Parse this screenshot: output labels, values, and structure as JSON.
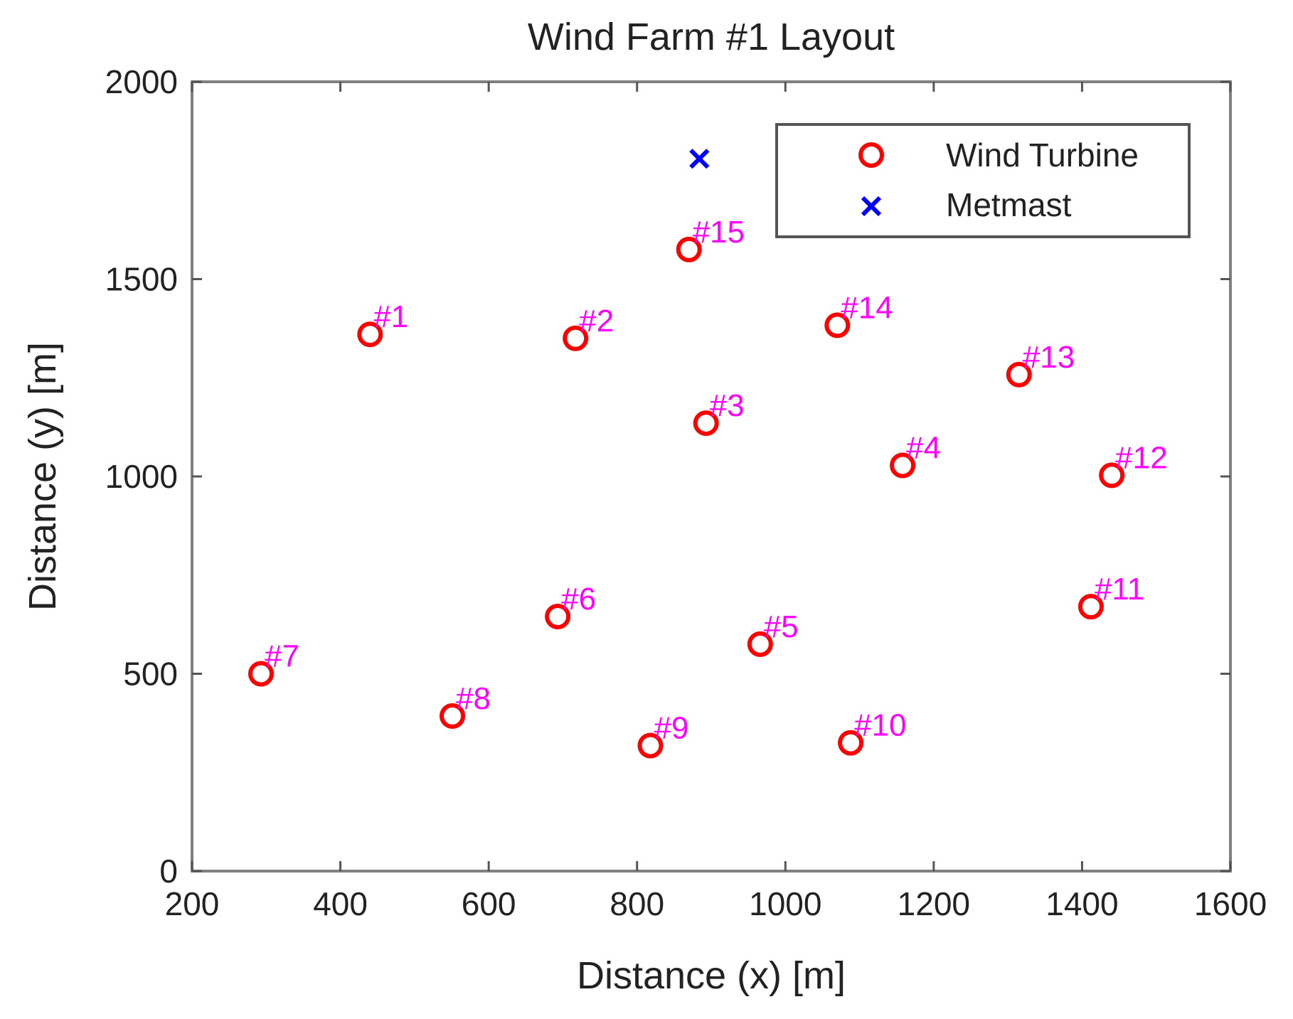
{
  "chart_data": {
    "type": "scatter",
    "title": "Wind Farm #1 Layout",
    "xlabel": "Distance (x) [m]",
    "ylabel": "Distance (y) [m]",
    "xlim": [
      200,
      1600
    ],
    "ylim": [
      0,
      2000
    ],
    "xticks": [
      200,
      400,
      600,
      800,
      1000,
      1200,
      1400,
      1600
    ],
    "yticks": [
      0,
      500,
      1000,
      1500,
      2000
    ],
    "grid": false,
    "legend_position": "top-right",
    "series": [
      {
        "name": "Wind Turbine",
        "marker": "circle",
        "color": "#ff0000",
        "label_color": "#ff00ff",
        "points": [
          {
            "label": "#1",
            "x": 440,
            "y": 1360
          },
          {
            "label": "#2",
            "x": 717,
            "y": 1350
          },
          {
            "label": "#3",
            "x": 893,
            "y": 1135
          },
          {
            "label": "#4",
            "x": 1158,
            "y": 1028
          },
          {
            "label": "#5",
            "x": 966,
            "y": 575
          },
          {
            "label": "#6",
            "x": 693,
            "y": 645
          },
          {
            "label": "#7",
            "x": 293,
            "y": 500
          },
          {
            "label": "#8",
            "x": 551,
            "y": 393
          },
          {
            "label": "#9",
            "x": 818,
            "y": 318
          },
          {
            "label": "#10",
            "x": 1088,
            "y": 325
          },
          {
            "label": "#11",
            "x": 1412,
            "y": 670
          },
          {
            "label": "#12",
            "x": 1440,
            "y": 1003
          },
          {
            "label": "#13",
            "x": 1315,
            "y": 1258
          },
          {
            "label": "#14",
            "x": 1070,
            "y": 1383
          },
          {
            "label": "#15",
            "x": 870,
            "y": 1575
          }
        ]
      },
      {
        "name": "Metmast",
        "marker": "x",
        "color": "#0000ff",
        "points": [
          {
            "x": 884,
            "y": 1805
          }
        ]
      }
    ]
  }
}
